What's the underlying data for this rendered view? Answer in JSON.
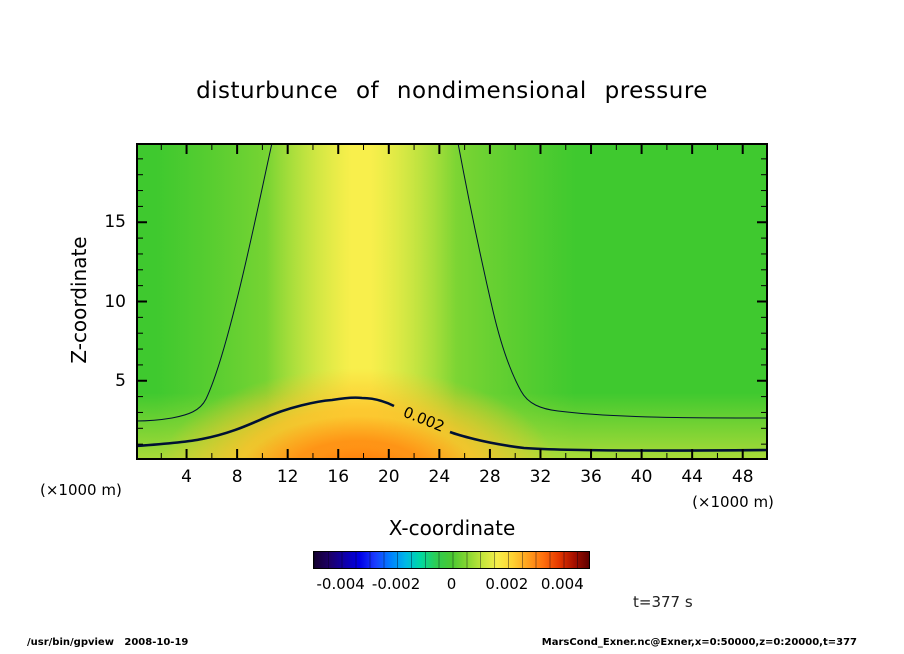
{
  "title": "disturbunce of nondimensional pressure",
  "axes": {
    "x_label": "X-coordinate",
    "z_label": "Z-coordinate",
    "x_unit_label": "(×1000 m)",
    "z_unit_label": "(×1000 m)"
  },
  "chart_data": {
    "type": "heatmap",
    "title": "disturbunce of nondimensional pressure",
    "xlabel": "X-coordinate",
    "ylabel": "Z-coordinate",
    "x_axis": {
      "min": 0,
      "max": 50,
      "unit": "×1000 m",
      "major_ticks": [
        4,
        8,
        12,
        16,
        20,
        24,
        28,
        32,
        36,
        40,
        44,
        48
      ],
      "minor_tick_step": 2
    },
    "z_axis": {
      "min": 0,
      "max": 20,
      "unit": "×1000 m",
      "major_ticks": [
        5,
        10,
        15
      ],
      "minor_tick_step": 1
    },
    "grid": false,
    "legend": "horizontal colorbar below plot",
    "time_seconds": 377,
    "contours": {
      "thick_labeled_level": 0.002,
      "thin_level": 0.001,
      "label_text": "0.002",
      "description": "Background green field ~0.001; a yellow plume (>0.0015) rises vertically around x=14-22 reaching the top; the thick 0.002 contour forms a hill peaking near x=18, z=4; hottest orange values up to ~0.004 hug the bottom boundary near x=14-22."
    },
    "field_summary": {
      "background_value": 0.001,
      "plume_center_x_k": 18,
      "max_value": 0.004,
      "max_location": "bottom center, x≈14-22 (×1000 m), z≈0"
    },
    "colorbar": {
      "min": -0.005,
      "max": 0.005,
      "tick_values": [
        -0.004,
        -0.002,
        0,
        0.002,
        0.004
      ],
      "tick_labels": [
        "-0.004",
        "-0.002",
        "0",
        "0.002",
        "0.004"
      ],
      "colors": [
        "#14002e",
        "#1d0066",
        "#0f00a8",
        "#0000e6",
        "#1a3cff",
        "#0080ff",
        "#00b8e6",
        "#00d9a0",
        "#2ecc52",
        "#49c832",
        "#84d631",
        "#c3e63c",
        "#f6ee4a",
        "#ffd232",
        "#ffa01e",
        "#ff700d",
        "#e63900",
        "#a81000",
        "#5e0000"
      ]
    }
  },
  "annotations": {
    "time_label": "t=377 s",
    "contour_label": "0.002"
  },
  "footer": {
    "left": "/usr/bin/gpview   2008-10-19",
    "right": "MarsCond_Exner.nc@Exner,x=0:50000,z=0:20000,t=377"
  },
  "colors": {
    "background_green": "#3fc92f",
    "plume_yellow": "#f8ef4c",
    "hot_orange": "#ff6b00",
    "contour_line": "#001133"
  }
}
